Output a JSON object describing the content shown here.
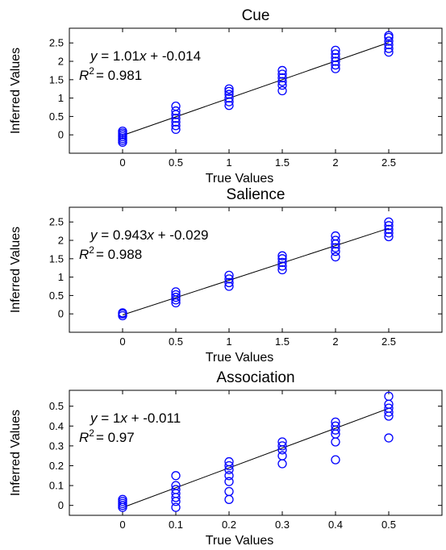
{
  "chart_data": [
    {
      "type": "scatter",
      "title": "Cue",
      "xlabel": "True Values",
      "ylabel": "Inferred Values",
      "xlim": [
        -0.5,
        3.0
      ],
      "ylim": [
        -0.5,
        2.9
      ],
      "xticks": [
        "0",
        "0.5",
        "1",
        "1.5",
        "2",
        "2.5"
      ],
      "yticks": [
        "0",
        "0.5",
        "1",
        "1.5",
        "2",
        "2.5"
      ],
      "grid": false,
      "marker_color": "#0000ff",
      "fit": {
        "slope": 1.01,
        "intercept": -0.014,
        "range": [
          0,
          2.5
        ]
      },
      "equation": {
        "line1": "y = 1.01x + -0.014",
        "r2_label": "R",
        "r2_value": "= 0.981"
      },
      "points": [
        {
          "x": 0,
          "y": -0.2
        },
        {
          "x": 0,
          "y": -0.15
        },
        {
          "x": 0,
          "y": -0.1
        },
        {
          "x": 0,
          "y": -0.05
        },
        {
          "x": 0,
          "y": 0
        },
        {
          "x": 0,
          "y": 0.05
        },
        {
          "x": 0,
          "y": 0.1
        },
        {
          "x": 0.5,
          "y": 0.15
        },
        {
          "x": 0.5,
          "y": 0.25
        },
        {
          "x": 0.5,
          "y": 0.35
        },
        {
          "x": 0.5,
          "y": 0.45
        },
        {
          "x": 0.5,
          "y": 0.55
        },
        {
          "x": 0.5,
          "y": 0.65
        },
        {
          "x": 0.5,
          "y": 0.78
        },
        {
          "x": 1,
          "y": 0.8
        },
        {
          "x": 1,
          "y": 0.9
        },
        {
          "x": 1,
          "y": 1.0
        },
        {
          "x": 1,
          "y": 1.1
        },
        {
          "x": 1,
          "y": 1.18
        },
        {
          "x": 1,
          "y": 1.25
        },
        {
          "x": 1.5,
          "y": 1.2
        },
        {
          "x": 1.5,
          "y": 1.35
        },
        {
          "x": 1.5,
          "y": 1.45
        },
        {
          "x": 1.5,
          "y": 1.55
        },
        {
          "x": 1.5,
          "y": 1.65
        },
        {
          "x": 1.5,
          "y": 1.75
        },
        {
          "x": 2,
          "y": 1.8
        },
        {
          "x": 2,
          "y": 1.9
        },
        {
          "x": 2,
          "y": 2.0
        },
        {
          "x": 2,
          "y": 2.1
        },
        {
          "x": 2,
          "y": 2.2
        },
        {
          "x": 2,
          "y": 2.3
        },
        {
          "x": 2.5,
          "y": 2.25
        },
        {
          "x": 2.5,
          "y": 2.35
        },
        {
          "x": 2.5,
          "y": 2.45
        },
        {
          "x": 2.5,
          "y": 2.55
        },
        {
          "x": 2.5,
          "y": 2.65
        },
        {
          "x": 2.5,
          "y": 2.7
        }
      ]
    },
    {
      "type": "scatter",
      "title": "Salience",
      "xlabel": "True Values",
      "ylabel": "Inferred Values",
      "xlim": [
        -0.5,
        3.0
      ],
      "ylim": [
        -0.5,
        2.9
      ],
      "xticks": [
        "0",
        "0.5",
        "1",
        "1.5",
        "2",
        "2.5"
      ],
      "yticks": [
        "0",
        "0.5",
        "1",
        "1.5",
        "2",
        "2.5"
      ],
      "grid": false,
      "marker_color": "#0000ff",
      "fit": {
        "slope": 0.943,
        "intercept": -0.029,
        "range": [
          0,
          2.5
        ]
      },
      "equation": {
        "line1": "y = 0.943x + -0.029",
        "r2_label": "R",
        "r2_value": "= 0.988"
      },
      "points": [
        {
          "x": 0,
          "y": -0.05
        },
        {
          "x": 0,
          "y": 0
        },
        {
          "x": 0,
          "y": 0.03
        },
        {
          "x": 0.5,
          "y": 0.3
        },
        {
          "x": 0.5,
          "y": 0.38
        },
        {
          "x": 0.5,
          "y": 0.45
        },
        {
          "x": 0.5,
          "y": 0.52
        },
        {
          "x": 0.5,
          "y": 0.6
        },
        {
          "x": 1,
          "y": 0.75
        },
        {
          "x": 1,
          "y": 0.85
        },
        {
          "x": 1,
          "y": 0.95
        },
        {
          "x": 1,
          "y": 1.05
        },
        {
          "x": 1.5,
          "y": 1.2
        },
        {
          "x": 1.5,
          "y": 1.3
        },
        {
          "x": 1.5,
          "y": 1.4
        },
        {
          "x": 1.5,
          "y": 1.5
        },
        {
          "x": 1.5,
          "y": 1.58
        },
        {
          "x": 2,
          "y": 1.55
        },
        {
          "x": 2,
          "y": 1.7
        },
        {
          "x": 2,
          "y": 1.8
        },
        {
          "x": 2,
          "y": 1.9
        },
        {
          "x": 2,
          "y": 2.0
        },
        {
          "x": 2,
          "y": 2.12
        },
        {
          "x": 2.5,
          "y": 2.1
        },
        {
          "x": 2.5,
          "y": 2.2
        },
        {
          "x": 2.5,
          "y": 2.3
        },
        {
          "x": 2.5,
          "y": 2.4
        },
        {
          "x": 2.5,
          "y": 2.5
        }
      ]
    },
    {
      "type": "scatter",
      "title": "Association",
      "xlabel": "True Values",
      "ylabel": "Inferred Values",
      "xlim": [
        -0.1,
        0.6
      ],
      "ylim": [
        -0.05,
        0.58
      ],
      "xticks": [
        "0",
        "0.1",
        "0.2",
        "0.3",
        "0.4",
        "0.5"
      ],
      "yticks": [
        "0",
        "0.1",
        "0.2",
        "0.3",
        "0.4",
        "0.5"
      ],
      "grid": false,
      "marker_color": "#0000ff",
      "fit": {
        "slope": 1,
        "intercept": -0.011,
        "range": [
          0,
          0.5
        ]
      },
      "equation": {
        "line1": "y = 1x + -0.011",
        "r2_label": "R",
        "r2_value": "= 0.97"
      },
      "points": [
        {
          "x": 0,
          "y": -0.01
        },
        {
          "x": 0,
          "y": 0
        },
        {
          "x": 0,
          "y": 0.01
        },
        {
          "x": 0,
          "y": 0.02
        },
        {
          "x": 0,
          "y": 0.03
        },
        {
          "x": 0.1,
          "y": -0.01
        },
        {
          "x": 0.1,
          "y": 0.02
        },
        {
          "x": 0.1,
          "y": 0.04
        },
        {
          "x": 0.1,
          "y": 0.06
        },
        {
          "x": 0.1,
          "y": 0.08
        },
        {
          "x": 0.1,
          "y": 0.1
        },
        {
          "x": 0.1,
          "y": 0.15
        },
        {
          "x": 0.2,
          "y": 0.03
        },
        {
          "x": 0.2,
          "y": 0.07
        },
        {
          "x": 0.2,
          "y": 0.12
        },
        {
          "x": 0.2,
          "y": 0.15
        },
        {
          "x": 0.2,
          "y": 0.18
        },
        {
          "x": 0.2,
          "y": 0.2
        },
        {
          "x": 0.2,
          "y": 0.22
        },
        {
          "x": 0.3,
          "y": 0.21
        },
        {
          "x": 0.3,
          "y": 0.25
        },
        {
          "x": 0.3,
          "y": 0.28
        },
        {
          "x": 0.3,
          "y": 0.3
        },
        {
          "x": 0.3,
          "y": 0.32
        },
        {
          "x": 0.4,
          "y": 0.23
        },
        {
          "x": 0.4,
          "y": 0.32
        },
        {
          "x": 0.4,
          "y": 0.36
        },
        {
          "x": 0.4,
          "y": 0.38
        },
        {
          "x": 0.4,
          "y": 0.4
        },
        {
          "x": 0.4,
          "y": 0.42
        },
        {
          "x": 0.5,
          "y": 0.34
        },
        {
          "x": 0.5,
          "y": 0.45
        },
        {
          "x": 0.5,
          "y": 0.47
        },
        {
          "x": 0.5,
          "y": 0.49
        },
        {
          "x": 0.5,
          "y": 0.51
        },
        {
          "x": 0.5,
          "y": 0.55
        }
      ]
    }
  ]
}
